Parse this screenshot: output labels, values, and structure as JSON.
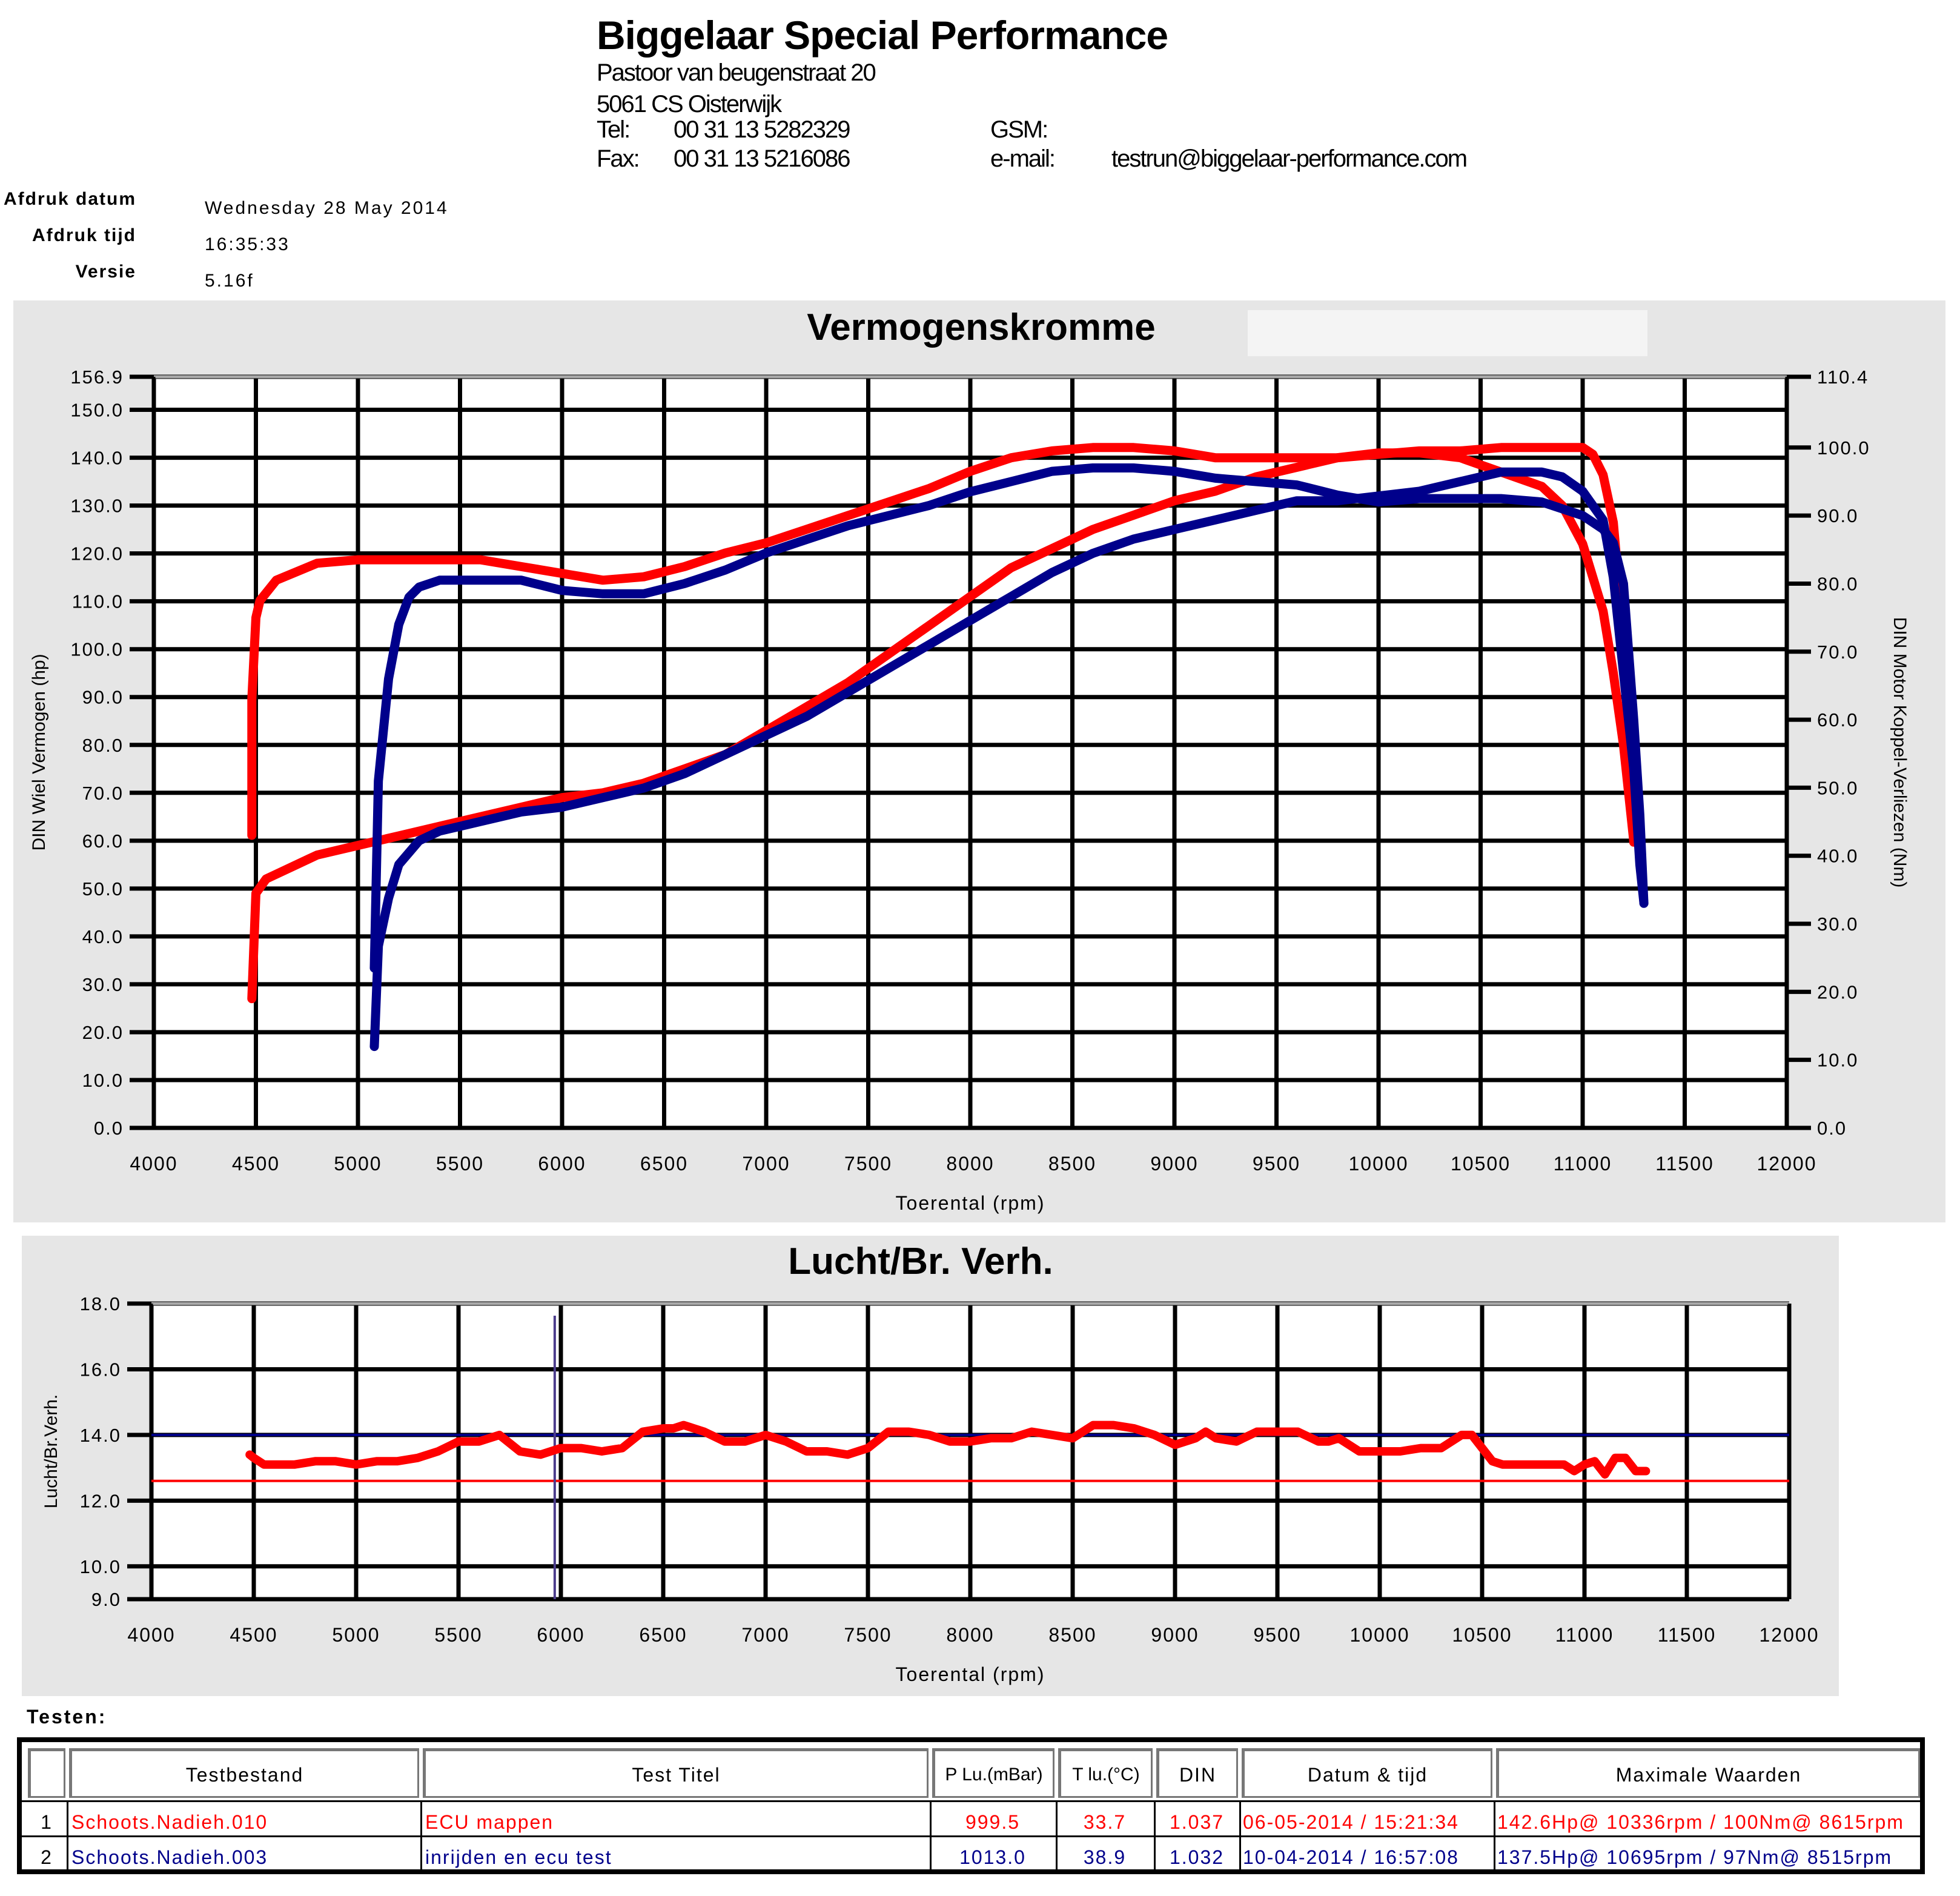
{
  "header": {
    "company": "Biggelaar Special Performance",
    "street": "Pastoor van beugenstraat  20",
    "city": "5061 CS Oisterwijk",
    "tel_label": "Tel:",
    "tel_value": "00 31 13 5282329",
    "fax_label": "Fax:",
    "fax_value": "00 31 13 5216086",
    "gsm_label": "GSM:",
    "email_label": "e-mail:",
    "email_value": "testrun@biggelaar-performance.com"
  },
  "meta": {
    "date_label": "Afdruk datum",
    "date_value": "Wednesday 28 May 2014",
    "time_label": "Afdruk tijd",
    "time_value": "16:35:33",
    "version_label": "Versie",
    "version_value": "5.16f"
  },
  "colors": {
    "run1": "#ff0000",
    "run2": "#00008b",
    "panel": "#e6e6e6"
  },
  "chart_data": [
    {
      "type": "line",
      "title": "Vermogenskromme",
      "xlabel": "Toerental (rpm)",
      "ylabel": "DIN Wiel Vermogen (hp)",
      "y2label": "DIN Motor Koppel-Verliezen (Nm)",
      "xlim": [
        4000,
        12000
      ],
      "ylim": [
        0,
        156.9
      ],
      "y2lim": [
        0,
        110.4
      ],
      "xticks": [
        "4000",
        "4500",
        "5000",
        "5500",
        "6000",
        "6500",
        "7000",
        "7500",
        "8000",
        "8500",
        "9000",
        "9500",
        "10000",
        "10500",
        "11000",
        "11500",
        "12000"
      ],
      "yticks": [
        "0.0",
        "10.0",
        "20.0",
        "30.0",
        "40.0",
        "50.0",
        "60.0",
        "70.0",
        "80.0",
        "90.0",
        "100.0",
        "110.0",
        "120.0",
        "130.0",
        "140.0",
        "150.0",
        "156.9"
      ],
      "y2ticks": [
        "0.0",
        "10.0",
        "20.0",
        "30.0",
        "40.0",
        "50.0",
        "60.0",
        "70.0",
        "80.0",
        "90.0",
        "100.0",
        "110.4"
      ],
      "grid": true,
      "series": [
        {
          "id": "run1-power",
          "axis": "left",
          "color": "#ff0000",
          "x": [
            4480,
            4500,
            4550,
            4600,
            4700,
            4800,
            5000,
            5200,
            5400,
            5600,
            5800,
            6000,
            6200,
            6400,
            6600,
            6800,
            7000,
            7200,
            7400,
            7600,
            7800,
            8000,
            8200,
            8400,
            8600,
            8800,
            9000,
            9200,
            9400,
            9600,
            9800,
            10000,
            10200,
            10400,
            10600,
            10800,
            10900,
            11000,
            11100,
            11150,
            11200,
            11250
          ],
          "y": [
            27,
            49,
            52,
            53,
            55,
            57,
            59,
            61,
            63,
            65,
            67,
            69,
            70,
            72,
            75,
            78,
            83,
            88,
            93,
            99,
            105,
            111,
            117,
            121,
            125,
            128,
            131,
            133,
            136,
            138,
            140,
            141,
            141,
            140,
            137,
            134,
            130,
            122,
            108,
            95,
            80,
            60
          ]
        },
        {
          "id": "run1-torque",
          "axis": "right",
          "color": "#ff0000",
          "x": [
            4480,
            4480,
            4500,
            4520,
            4600,
            4800,
            5000,
            5200,
            5400,
            5600,
            5800,
            6000,
            6200,
            6400,
            6600,
            6800,
            7000,
            7200,
            7400,
            7600,
            7800,
            8000,
            8200,
            8400,
            8600,
            8800,
            9000,
            9200,
            9400,
            9600,
            9800,
            10000,
            10200,
            10400,
            10600,
            10800,
            10950,
            11000,
            11050,
            11100,
            11150,
            11200,
            11250
          ],
          "y": [
            43,
            63,
            75,
            77.5,
            80.5,
            83,
            83.5,
            83.5,
            83.5,
            83.5,
            82.5,
            81.5,
            80.5,
            81,
            82.5,
            84.5,
            86,
            88,
            90,
            92,
            94,
            96.5,
            98.5,
            99.5,
            100,
            100,
            99.5,
            98.5,
            98.5,
            98.5,
            98.5,
            99,
            99.5,
            99.5,
            100,
            100,
            100,
            100,
            99,
            96,
            89,
            72,
            42
          ]
        },
        {
          "id": "run2-power",
          "axis": "left",
          "color": "#00008b",
          "x": [
            5080,
            5100,
            5150,
            5200,
            5300,
            5400,
            5600,
            5800,
            6000,
            6200,
            6400,
            6600,
            6800,
            7000,
            7200,
            7400,
            7600,
            7800,
            8000,
            8200,
            8400,
            8600,
            8800,
            9000,
            9200,
            9400,
            9600,
            9800,
            10000,
            10200,
            10400,
            10600,
            10700,
            10800,
            10900,
            11000,
            11100,
            11150,
            11200,
            11250,
            11280,
            11300
          ],
          "y": [
            17,
            38,
            48,
            55,
            60,
            62,
            64,
            66,
            67,
            69,
            71,
            74,
            78,
            82,
            86,
            91,
            96,
            101,
            106,
            111,
            116,
            120,
            123,
            125,
            127,
            129,
            131,
            131,
            132,
            133,
            135,
            137,
            137,
            137,
            136,
            133,
            127,
            115,
            95,
            75,
            55,
            47
          ]
        },
        {
          "id": "run2-torque",
          "axis": "right",
          "color": "#00008b",
          "x": [
            5080,
            5100,
            5150,
            5200,
            5250,
            5300,
            5400,
            5600,
            5800,
            6000,
            6200,
            6400,
            6600,
            6800,
            7000,
            7200,
            7400,
            7600,
            7800,
            8000,
            8200,
            8400,
            8600,
            8800,
            9000,
            9200,
            9400,
            9600,
            9800,
            10000,
            10200,
            10400,
            10600,
            10800,
            11000,
            11100,
            11150,
            11200,
            11250,
            11280,
            11300
          ],
          "y": [
            23.5,
            51,
            66,
            74,
            78,
            79.5,
            80.5,
            80.5,
            80.5,
            79,
            78.5,
            78.5,
            80,
            82,
            84.5,
            86.5,
            88.5,
            90,
            91.5,
            93.5,
            95,
            96.5,
            97,
            97,
            96.5,
            95.5,
            95,
            94.5,
            93,
            92,
            92.5,
            92.5,
            92.5,
            92,
            90,
            88,
            86,
            80,
            60,
            46,
            33
          ]
        }
      ]
    },
    {
      "type": "line",
      "title": "Lucht/Br. Verh.",
      "xlabel": "Toerental (rpm)",
      "ylabel": "Lucht/Br.Verh.",
      "xlim": [
        4000,
        12000
      ],
      "ylim": [
        9.0,
        18.0
      ],
      "xticks": [
        "4000",
        "4500",
        "5000",
        "5500",
        "6000",
        "6500",
        "7000",
        "7500",
        "8000",
        "8500",
        "9000",
        "9500",
        "10000",
        "10500",
        "11000",
        "11500",
        "12000"
      ],
      "yticks": [
        "9.0",
        "10.0",
        "12.0",
        "14.0",
        "16.0",
        "18.0"
      ],
      "grid": true,
      "reference_lines": [
        {
          "id": "ref-blue",
          "y": 14.0,
          "color": "#00008b"
        },
        {
          "id": "ref-red",
          "y": 12.6,
          "color": "#ff0000"
        }
      ],
      "series": [
        {
          "id": "run1-afr",
          "color": "#ff0000",
          "x": [
            4480,
            4500,
            4550,
            4600,
            4700,
            4800,
            4900,
            5000,
            5100,
            5200,
            5300,
            5400,
            5500,
            5550,
            5600,
            5700,
            5800,
            5900,
            6000,
            6100,
            6200,
            6300,
            6400,
            6500,
            6550,
            6600,
            6700,
            6800,
            6900,
            7000,
            7100,
            7200,
            7300,
            7400,
            7500,
            7600,
            7700,
            7800,
            7900,
            8000,
            8100,
            8200,
            8300,
            8400,
            8500,
            8600,
            8700,
            8800,
            8900,
            9000,
            9100,
            9150,
            9200,
            9300,
            9400,
            9500,
            9600,
            9700,
            9750,
            9800,
            9900,
            10000,
            10100,
            10200,
            10300,
            10400,
            10450,
            10500,
            10550,
            10600,
            10700,
            10800,
            10900,
            10950,
            11000,
            11050,
            11100,
            11150,
            11200,
            11250,
            11300
          ],
          "y": [
            13.4,
            13.3,
            13.1,
            13.1,
            13.1,
            13.2,
            13.2,
            13.1,
            13.2,
            13.2,
            13.3,
            13.5,
            13.8,
            13.8,
            13.8,
            14.0,
            13.5,
            13.4,
            13.6,
            13.6,
            13.5,
            13.6,
            14.1,
            14.2,
            14.2,
            14.3,
            14.1,
            13.8,
            13.8,
            14.0,
            13.8,
            13.5,
            13.5,
            13.4,
            13.6,
            14.1,
            14.1,
            14.0,
            13.8,
            13.8,
            13.9,
            13.9,
            14.1,
            14.0,
            13.9,
            14.3,
            14.3,
            14.2,
            14.0,
            13.7,
            13.9,
            14.1,
            13.9,
            13.8,
            14.1,
            14.1,
            14.1,
            13.8,
            13.8,
            13.9,
            13.5,
            13.5,
            13.5,
            13.6,
            13.6,
            14.0,
            14.0,
            13.6,
            13.2,
            13.1,
            13.1,
            13.1,
            13.1,
            12.9,
            13.1,
            13.2,
            12.8,
            13.3,
            13.3,
            12.9,
            12.9
          ]
        }
      ]
    }
  ],
  "tests": {
    "section_label": "Testen:",
    "columns": [
      "Testbestand",
      "Test Titel",
      "P Lu.(mBar)",
      "T lu.(°C)",
      "DIN",
      "Datum & tijd",
      "Maximale Waarden"
    ],
    "rows": [
      {
        "index": "1",
        "file": "Schoots.Nadieh.010",
        "title": "ECU mappen",
        "p": "999.5",
        "t": "33.7",
        "din": "1.037",
        "datetime": "06-05-2014 / 15:21:34",
        "max": "142.6Hp@ 10336rpm / 100Nm@ 8615rpm",
        "color": "#ff0000"
      },
      {
        "index": "2",
        "file": "Schoots.Nadieh.003",
        "title": "inrijden en ecu test",
        "p": "1013.0",
        "t": "38.9",
        "din": "1.032",
        "datetime": "10-04-2014 / 16:57:08",
        "max": "137.5Hp@ 10695rpm / 97Nm@ 8515rpm",
        "color": "#00008b"
      }
    ]
  }
}
